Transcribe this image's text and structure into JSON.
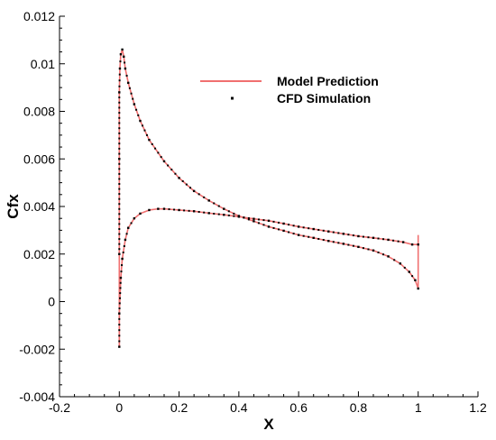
{
  "chart_data": {
    "type": "line",
    "title": "",
    "xlabel": "X",
    "ylabel": "Cfx",
    "xlim": [
      -0.2,
      1.2
    ],
    "ylim": [
      -0.004,
      0.012
    ],
    "x_ticks": [
      -0.2,
      0,
      0.2,
      0.4,
      0.6,
      0.8,
      1,
      1.2
    ],
    "x_tick_labels": [
      "-0.2",
      "0",
      "0.2",
      "0.4",
      "0.6",
      "0.8",
      "1",
      "1.2"
    ],
    "y_ticks": [
      -0.004,
      -0.002,
      0,
      0.002,
      0.004,
      0.006,
      0.008,
      0.01,
      0.012
    ],
    "y_tick_labels": [
      "-0.004",
      "-0.002",
      "0",
      "0.002",
      "0.004",
      "0.006",
      "0.008",
      "0.01",
      "0.012"
    ],
    "grid": false,
    "legend_position": "top-center",
    "colors": {
      "model": "#f07070",
      "cfd": "#000000",
      "axis": "#000000"
    },
    "series": [
      {
        "name": "Model Prediction",
        "style": "line",
        "curves": [
          {
            "x": [
              0.0,
              0.0,
              0.0,
              0.0,
              0.002,
              0.005,
              0.01,
              0.015,
              0.02,
              0.03,
              0.05,
              0.07,
              0.1,
              0.15,
              0.2,
              0.25,
              0.3,
              0.35,
              0.4,
              0.45,
              0.5,
              0.55,
              0.6,
              0.65,
              0.7,
              0.75,
              0.8,
              0.85,
              0.9,
              0.94,
              0.97,
              0.99,
              1.0
            ],
            "y": [
              -0.0019,
              0.002,
              0.006,
              0.0088,
              0.0098,
              0.0104,
              0.0106,
              0.0103,
              0.0098,
              0.0092,
              0.0083,
              0.0076,
              0.0068,
              0.0059,
              0.0052,
              0.00465,
              0.00425,
              0.0039,
              0.0036,
              0.00338,
              0.00315,
              0.00298,
              0.0028,
              0.00268,
              0.00255,
              0.00243,
              0.0023,
              0.00215,
              0.0019,
              0.0016,
              0.00125,
              0.0009,
              0.00055
            ]
          },
          {
            "x": [
              0.0,
              0.0,
              0.005,
              0.01,
              0.02,
              0.03,
              0.05,
              0.07,
              0.1,
              0.13,
              0.15,
              0.2,
              0.25,
              0.3,
              0.35,
              0.4,
              0.45,
              0.5,
              0.55,
              0.6,
              0.65,
              0.7,
              0.75,
              0.8,
              0.85,
              0.9,
              0.95,
              0.98,
              1.0
            ],
            "y": [
              -0.0019,
              -0.0005,
              0.001,
              0.0018,
              0.0026,
              0.0031,
              0.0035,
              0.0037,
              0.00385,
              0.0039,
              0.0039,
              0.00385,
              0.0038,
              0.00372,
              0.00365,
              0.00357,
              0.00348,
              0.0034,
              0.00328,
              0.00315,
              0.00305,
              0.00295,
              0.00285,
              0.00275,
              0.00268,
              0.0026,
              0.0025,
              0.0024,
              0.0024
            ]
          },
          {
            "x": [
              1.0,
              1.0
            ],
            "y": [
              0.0006,
              0.0028
            ]
          }
        ]
      },
      {
        "name": "CFD Simulation",
        "style": "points",
        "curves": [
          {
            "x": [
              0.0,
              0.0,
              0.0,
              0.002,
              0.005,
              0.01,
              0.015,
              0.02,
              0.03,
              0.05,
              0.07,
              0.1,
              0.15,
              0.2,
              0.25,
              0.3,
              0.35,
              0.4,
              0.45,
              0.5,
              0.55,
              0.6,
              0.65,
              0.7,
              0.75,
              0.8,
              0.85,
              0.9,
              0.94,
              0.97,
              0.99,
              1.0
            ],
            "y": [
              0.002,
              0.006,
              0.0088,
              0.0098,
              0.0104,
              0.0106,
              0.0103,
              0.0098,
              0.0092,
              0.0083,
              0.0076,
              0.0068,
              0.0059,
              0.0052,
              0.00465,
              0.00425,
              0.0039,
              0.0036,
              0.00338,
              0.00315,
              0.00298,
              0.0028,
              0.00268,
              0.00255,
              0.00243,
              0.0023,
              0.00215,
              0.0019,
              0.0016,
              0.00125,
              0.0009,
              0.00055
            ]
          },
          {
            "x": [
              0.0,
              0.0,
              0.005,
              0.01,
              0.02,
              0.03,
              0.05,
              0.07,
              0.1,
              0.13,
              0.15,
              0.2,
              0.25,
              0.3,
              0.35,
              0.4,
              0.45,
              0.5,
              0.55,
              0.6,
              0.65,
              0.7,
              0.75,
              0.8,
              0.85,
              0.9,
              0.95,
              0.98,
              1.0
            ],
            "y": [
              -0.0019,
              -0.0005,
              0.001,
              0.0018,
              0.0026,
              0.0031,
              0.0035,
              0.0037,
              0.00385,
              0.0039,
              0.0039,
              0.00385,
              0.0038,
              0.00372,
              0.00365,
              0.00357,
              0.00348,
              0.0034,
              0.00328,
              0.00315,
              0.00305,
              0.00295,
              0.00285,
              0.00275,
              0.00268,
              0.0026,
              0.0025,
              0.0024,
              0.0024
            ]
          }
        ]
      }
    ]
  }
}
